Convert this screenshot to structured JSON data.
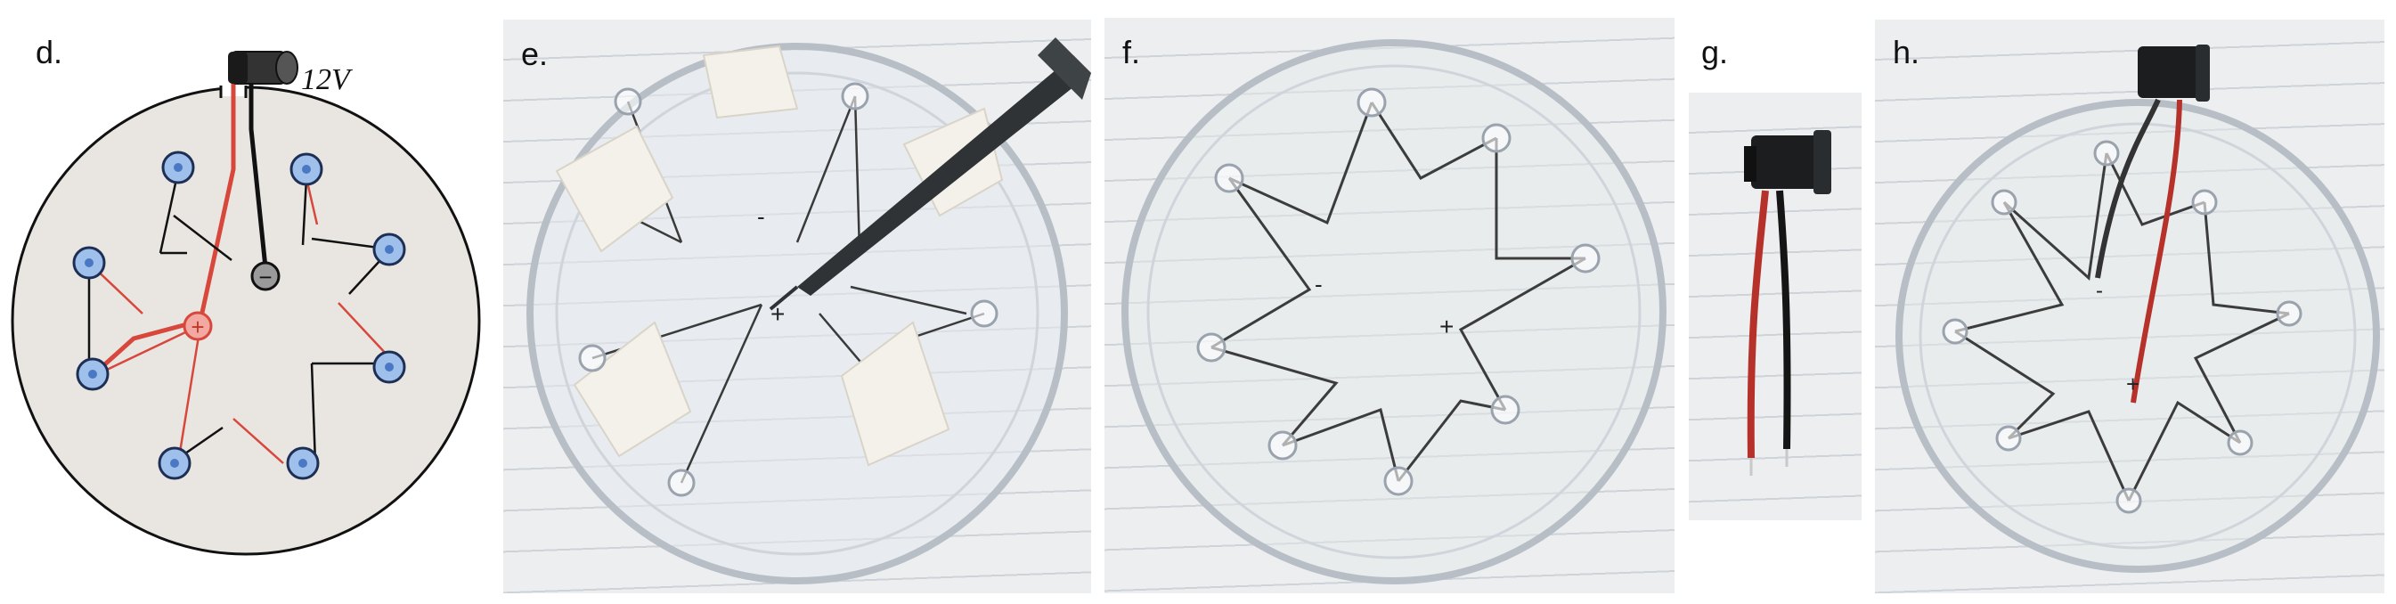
{
  "panels": {
    "d": {
      "label": "d.",
      "voltage_label": "12V",
      "plus_symbol": "+",
      "minus_symbol": "−"
    },
    "e": {
      "label": "e.",
      "marks": {
        "minus": "-",
        "plus": "+"
      }
    },
    "f": {
      "label": "f.",
      "marks": {
        "minus": "-",
        "plus": "+"
      }
    },
    "g": {
      "label": "g."
    },
    "h": {
      "label": "h.",
      "marks": {
        "minus": "-",
        "plus": "+"
      }
    }
  },
  "colors": {
    "led_fill": "#9ec0ea",
    "led_stroke": "#1d2f55",
    "wire_black": "#111111",
    "wire_red": "#d8473b",
    "dish_fill": "#e9e6e2",
    "tape": "#f4f1ea"
  }
}
